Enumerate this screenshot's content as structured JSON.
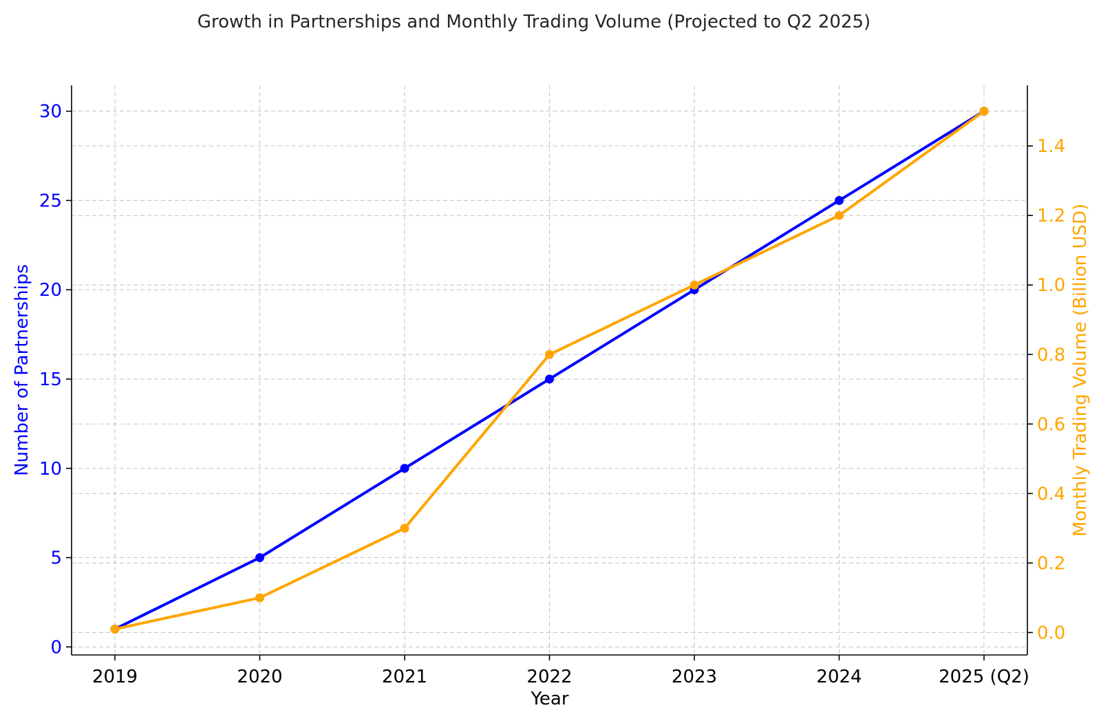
{
  "chart_data": {
    "type": "line",
    "title": "Growth in Partnerships and Monthly Trading Volume (Projected to Q2 2025)",
    "xlabel": "Year",
    "ylabel_left": "Number of Partnerships",
    "ylabel_right": "Monthly Trading Volume (Billion USD)",
    "categories": [
      "2019",
      "2020",
      "2021",
      "2022",
      "2023",
      "2024",
      "2025 (Q2)"
    ],
    "grid": true,
    "left_axis": {
      "ticks": [
        0,
        5,
        10,
        15,
        20,
        25,
        30
      ],
      "tick_labels": [
        "0",
        "5",
        "10",
        "15",
        "20",
        "25",
        "30"
      ],
      "ylim": [
        -0.45,
        31.45
      ],
      "color": "#0000ff"
    },
    "right_axis": {
      "ticks": [
        0.0,
        0.2,
        0.4,
        0.6,
        0.8,
        1.0,
        1.2,
        1.4
      ],
      "tick_labels": [
        "0.0",
        "0.2",
        "0.4",
        "0.6",
        "0.8",
        "1.0",
        "1.2",
        "1.4"
      ],
      "ylim": [
        -0.0645,
        1.5745
      ],
      "color": "#ffa500"
    },
    "series": [
      {
        "axis": "left",
        "color": "#0000ff",
        "values": [
          1,
          5,
          10,
          15,
          20,
          25,
          30
        ]
      },
      {
        "axis": "right",
        "color": "#ffa500",
        "values": [
          0.01,
          0.1,
          0.3,
          0.8,
          1.0,
          1.2,
          1.5
        ]
      }
    ]
  }
}
